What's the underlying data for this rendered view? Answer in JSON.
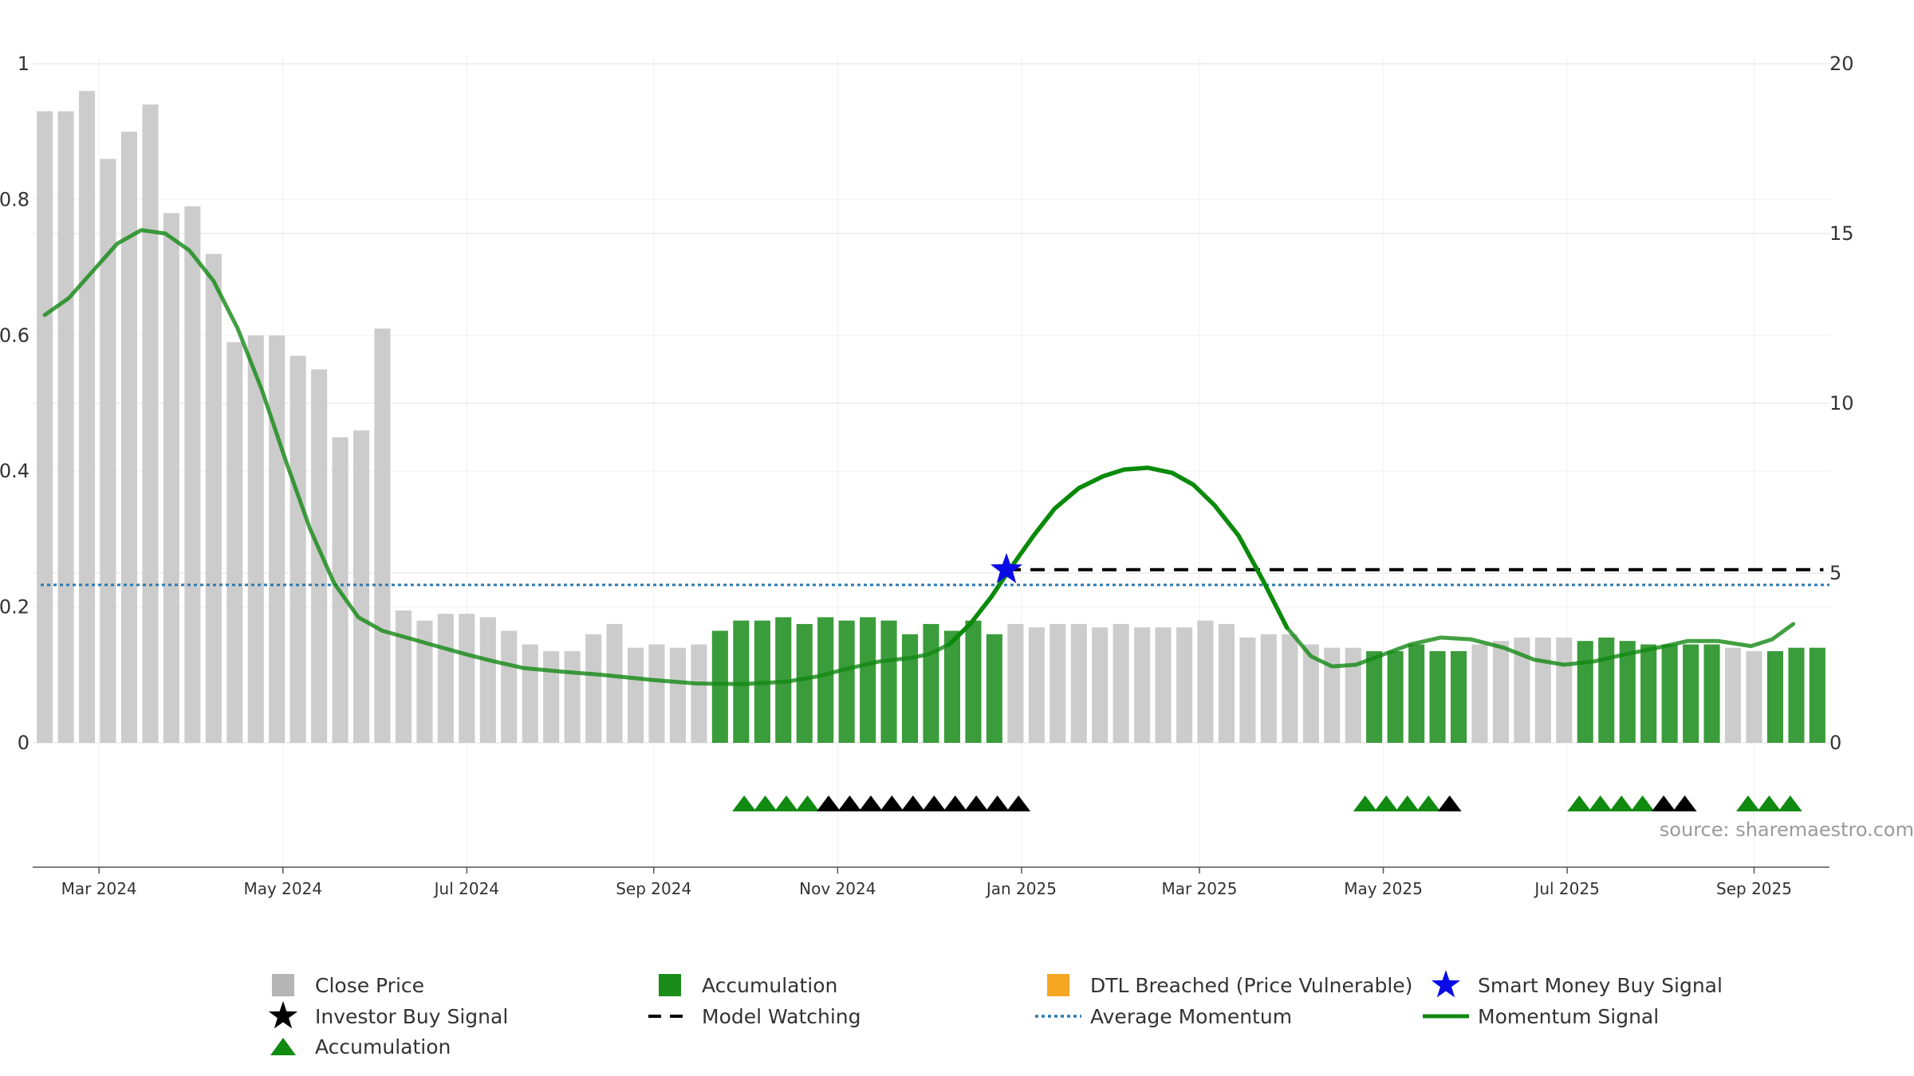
{
  "chart_data": {
    "type": "bar",
    "title": "",
    "xlabel": "",
    "ylabel": "",
    "left_axis": {
      "ylim": [
        0,
        1
      ],
      "ticks": [
        "0",
        "0.2",
        "0.4",
        "0.6",
        "0.8",
        "1"
      ]
    },
    "right_axis": {
      "ylim": [
        0,
        20
      ],
      "ticks": [
        "0",
        "5",
        "10",
        "15",
        "20"
      ]
    },
    "x_range": [
      "2024-02-08",
      "2025-09-26"
    ],
    "x_ticks": [
      {
        "date": "2024-03-01",
        "label": "Mar 2024"
      },
      {
        "date": "2024-05-01",
        "label": "May 2024"
      },
      {
        "date": "2024-07-01",
        "label": "Jul 2024"
      },
      {
        "date": "2024-09-01",
        "label": "Sep 2024"
      },
      {
        "date": "2024-11-01",
        "label": "Nov 2024"
      },
      {
        "date": "2025-01-01",
        "label": "Jan 2025"
      },
      {
        "date": "2025-03-01",
        "label": "Mar 2025"
      },
      {
        "date": "2025-05-01",
        "label": "May 2025"
      },
      {
        "date": "2025-07-01",
        "label": "Jul 2025"
      },
      {
        "date": "2025-09-01",
        "label": "Sep 2025"
      }
    ],
    "bar_first_date": "2024-02-12",
    "bar_interval_days": 7,
    "bar_values": [
      0.93,
      0.93,
      0.96,
      0.86,
      0.9,
      0.94,
      0.78,
      0.79,
      0.72,
      0.59,
      0.6,
      0.6,
      0.57,
      0.55,
      0.45,
      0.46,
      0.61,
      0.195,
      0.18,
      0.19,
      0.19,
      0.185,
      0.165,
      0.145,
      0.135,
      0.135,
      0.16,
      0.175,
      0.14,
      0.145,
      0.14,
      0.145,
      0.165,
      0.18,
      0.18,
      0.185,
      0.175,
      0.185,
      0.18,
      0.185,
      0.18,
      0.16,
      0.175,
      0.165,
      0.18,
      0.16,
      0.175,
      0.17,
      0.175,
      0.175,
      0.17,
      0.175,
      0.17,
      0.17,
      0.17,
      0.18,
      0.175,
      0.155,
      0.16,
      0.16,
      0.145,
      0.14,
      0.14,
      0.135,
      0.135,
      0.145,
      0.135,
      0.135,
      0.145,
      0.15,
      0.155,
      0.155,
      0.155,
      0.15,
      0.155,
      0.15,
      0.145,
      0.145,
      0.145,
      0.145,
      0.14,
      0.135,
      0.135,
      0.14,
      0.14
    ],
    "accumulation_bar_ranges": [
      [
        32,
        45
      ],
      [
        63,
        67
      ],
      [
        73,
        79
      ],
      [
        82,
        84
      ]
    ],
    "colors": {
      "close_price": "#cccccc",
      "accumulation_bar": "#3a9c3a",
      "accumulation_marker": "#108a10",
      "investor_signal": "#000000",
      "dtl_breached": "#f5a623",
      "smart_money": "#0a0ae6",
      "model_watching": "#000000",
      "average_momentum": "#2a7ab0",
      "momentum": "#138813",
      "grid": "#ececec"
    },
    "momentum": [
      [
        "2024-02-12",
        12.6
      ],
      [
        "2024-02-20",
        13.1
      ],
      [
        "2024-02-28",
        13.9
      ],
      [
        "2024-03-07",
        14.7
      ],
      [
        "2024-03-15",
        15.1
      ],
      [
        "2024-03-23",
        15.0
      ],
      [
        "2024-03-31",
        14.5
      ],
      [
        "2024-04-08",
        13.6
      ],
      [
        "2024-04-16",
        12.2
      ],
      [
        "2024-04-24",
        10.4
      ],
      [
        "2024-05-02",
        8.3
      ],
      [
        "2024-05-10",
        6.3
      ],
      [
        "2024-05-18",
        4.7
      ],
      [
        "2024-05-26",
        3.7
      ],
      [
        "2024-06-03",
        3.3
      ],
      [
        "2024-06-11",
        3.1
      ],
      [
        "2024-06-19",
        2.9
      ],
      [
        "2024-07-01",
        2.6
      ],
      [
        "2024-07-10",
        2.4
      ],
      [
        "2024-07-20",
        2.2
      ],
      [
        "2024-08-01",
        2.1
      ],
      [
        "2024-08-15",
        2.0
      ],
      [
        "2024-09-01",
        1.85
      ],
      [
        "2024-09-15",
        1.75
      ],
      [
        "2024-10-01",
        1.73
      ],
      [
        "2024-10-15",
        1.8
      ],
      [
        "2024-10-25",
        1.95
      ],
      [
        "2024-11-05",
        2.2
      ],
      [
        "2024-11-15",
        2.4
      ],
      [
        "2024-11-25",
        2.5
      ],
      [
        "2024-12-01",
        2.6
      ],
      [
        "2024-12-08",
        2.9
      ],
      [
        "2024-12-15",
        3.5
      ],
      [
        "2024-12-22",
        4.3
      ],
      [
        "2024-12-28",
        5.1
      ],
      [
        "2025-01-05",
        6.1
      ],
      [
        "2025-01-12",
        6.9
      ],
      [
        "2025-01-20",
        7.5
      ],
      [
        "2025-01-28",
        7.85
      ],
      [
        "2025-02-04",
        8.05
      ],
      [
        "2025-02-12",
        8.1
      ],
      [
        "2025-02-20",
        7.95
      ],
      [
        "2025-02-27",
        7.6
      ],
      [
        "2025-03-06",
        7.0
      ],
      [
        "2025-03-14",
        6.1
      ],
      [
        "2025-03-22",
        4.8
      ],
      [
        "2025-03-30",
        3.4
      ],
      [
        "2025-04-07",
        2.55
      ],
      [
        "2025-04-14",
        2.25
      ],
      [
        "2025-04-22",
        2.3
      ],
      [
        "2025-05-01",
        2.6
      ],
      [
        "2025-05-10",
        2.9
      ],
      [
        "2025-05-20",
        3.1
      ],
      [
        "2025-05-30",
        3.05
      ],
      [
        "2025-06-10",
        2.8
      ],
      [
        "2025-06-20",
        2.45
      ],
      [
        "2025-06-30",
        2.3
      ],
      [
        "2025-07-10",
        2.4
      ],
      [
        "2025-07-20",
        2.6
      ],
      [
        "2025-07-31",
        2.8
      ],
      [
        "2025-08-10",
        3.0
      ],
      [
        "2025-08-20",
        3.0
      ],
      [
        "2025-08-31",
        2.85
      ],
      [
        "2025-09-07",
        3.05
      ],
      [
        "2025-09-14",
        3.5
      ]
    ],
    "momentum_bright_ranges": [
      [
        "2024-12-05",
        "2025-04-05"
      ]
    ],
    "average_momentum": 4.65,
    "smart_money_signal": {
      "date": "2024-12-27",
      "value": 5.1
    },
    "model_watching": {
      "start": "2024-12-27",
      "end": "2025-09-24",
      "value": 5.1
    },
    "markers_first_date": "2024-10-01",
    "markers": [
      {
        "date": "2024-10-01",
        "type": "accumulation"
      },
      {
        "date": "2024-10-08",
        "type": "accumulation"
      },
      {
        "date": "2024-10-15",
        "type": "accumulation"
      },
      {
        "date": "2024-10-22",
        "type": "accumulation"
      },
      {
        "date": "2024-10-29",
        "type": "investor"
      },
      {
        "date": "2024-11-05",
        "type": "investor"
      },
      {
        "date": "2024-11-12",
        "type": "investor"
      },
      {
        "date": "2024-11-19",
        "type": "investor"
      },
      {
        "date": "2024-11-26",
        "type": "investor"
      },
      {
        "date": "2024-12-03",
        "type": "investor"
      },
      {
        "date": "2024-12-10",
        "type": "investor"
      },
      {
        "date": "2024-12-17",
        "type": "investor"
      },
      {
        "date": "2024-12-24",
        "type": "investor"
      },
      {
        "date": "2024-12-31",
        "type": "investor"
      },
      {
        "date": "2025-04-25",
        "type": "accumulation"
      },
      {
        "date": "2025-05-02",
        "type": "accumulation"
      },
      {
        "date": "2025-05-09",
        "type": "accumulation"
      },
      {
        "date": "2025-05-16",
        "type": "accumulation"
      },
      {
        "date": "2025-05-23",
        "type": "investor"
      },
      {
        "date": "2025-07-05",
        "type": "accumulation"
      },
      {
        "date": "2025-07-12",
        "type": "accumulation"
      },
      {
        "date": "2025-07-19",
        "type": "accumulation"
      },
      {
        "date": "2025-07-26",
        "type": "accumulation"
      },
      {
        "date": "2025-08-02",
        "type": "investor"
      },
      {
        "date": "2025-08-09",
        "type": "investor"
      },
      {
        "date": "2025-08-30",
        "type": "accumulation"
      },
      {
        "date": "2025-09-06",
        "type": "accumulation"
      },
      {
        "date": "2025-09-13",
        "type": "accumulation"
      }
    ],
    "legend": [
      {
        "label": "Close Price",
        "symbol": "square",
        "color": "#b5b5b5"
      },
      {
        "label": "Accumulation",
        "symbol": "square",
        "color": "#1a8c1a"
      },
      {
        "label": "DTL Breached (Price Vulnerable)",
        "symbol": "square",
        "color": "#f5a623"
      },
      {
        "label": "Smart Money Buy Signal",
        "symbol": "star",
        "color": "#0a0ae6"
      },
      {
        "label": "Investor Buy Signal",
        "symbol": "star",
        "color": "#000000"
      },
      {
        "label": "Model Watching",
        "symbol": "dash",
        "color": "#000000"
      },
      {
        "label": "Average Momentum",
        "symbol": "dot",
        "color": "#2a7ab0"
      },
      {
        "label": "Momentum Signal",
        "symbol": "line",
        "color": "#138813"
      },
      {
        "label": "Accumulation",
        "symbol": "triangle",
        "color": "#108a10"
      }
    ],
    "legend_placement": "bottom",
    "grid": true
  },
  "source_text": "source: sharemaestro.com"
}
